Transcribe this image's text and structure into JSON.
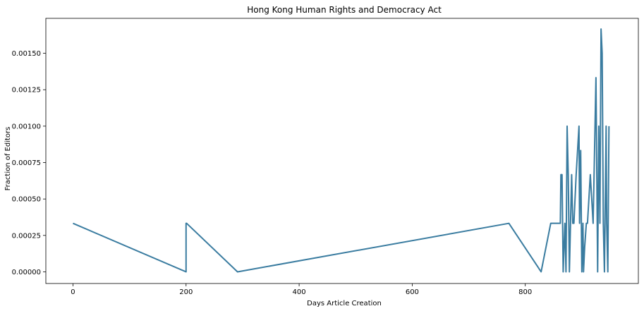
{
  "chart_data": {
    "type": "line",
    "title": "Hong Kong Human Rights and Democracy Act",
    "xlabel": "Days Article Creation",
    "ylabel": "Fraction of Editors",
    "xlim": [
      -48,
      1000
    ],
    "ylim": [
      -8e-05,
      0.00174
    ],
    "xticks": [
      0,
      200,
      400,
      600,
      800
    ],
    "xtick_labels": [
      "0",
      "200",
      "400",
      "600",
      "800"
    ],
    "yticks": [
      0,
      0.00025,
      0.0005,
      0.00075,
      0.001,
      0.00125,
      0.0015
    ],
    "ytick_labels": [
      "0.00000",
      "0.00025",
      "0.00050",
      "0.00075",
      "0.00100",
      "0.00125",
      "0.00150"
    ],
    "grid": false,
    "colors": {
      "line": "#3a7ca0",
      "axes": "#000000"
    },
    "series": [
      {
        "x": [
          0,
          200,
          200,
          201,
          291,
          771,
          828,
          845,
          862,
          863,
          865,
          867,
          870,
          872,
          874,
          876,
          878,
          880,
          882,
          884,
          886,
          890,
          895,
          896,
          898,
          900,
          902,
          903,
          905,
          908,
          910,
          915,
          920,
          925,
          928,
          930,
          932,
          934,
          936,
          938,
          940,
          941,
          943,
          944,
          946,
          948
        ],
        "y": [
          0.000333,
          0.0,
          0.000333,
          0.000333,
          0.0,
          0.000333,
          0.0,
          0.000333,
          0.000333,
          0.000667,
          0.000667,
          0.0,
          0.000333,
          0.0,
          0.001,
          0.000667,
          0.0,
          0.000333,
          0.000667,
          0.000333,
          0.000333,
          0.000667,
          0.001,
          0.000333,
          0.000833,
          0.0,
          0.000333,
          0.0,
          0.000167,
          0.000333,
          0.000333,
          0.000667,
          0.000333,
          0.001333,
          0.0,
          0.001,
          0.000333,
          0.001667,
          0.0015,
          0.000333,
          0.0,
          0.000333,
          0.001,
          0.000333,
          0.0,
          0.001
        ]
      }
    ]
  }
}
